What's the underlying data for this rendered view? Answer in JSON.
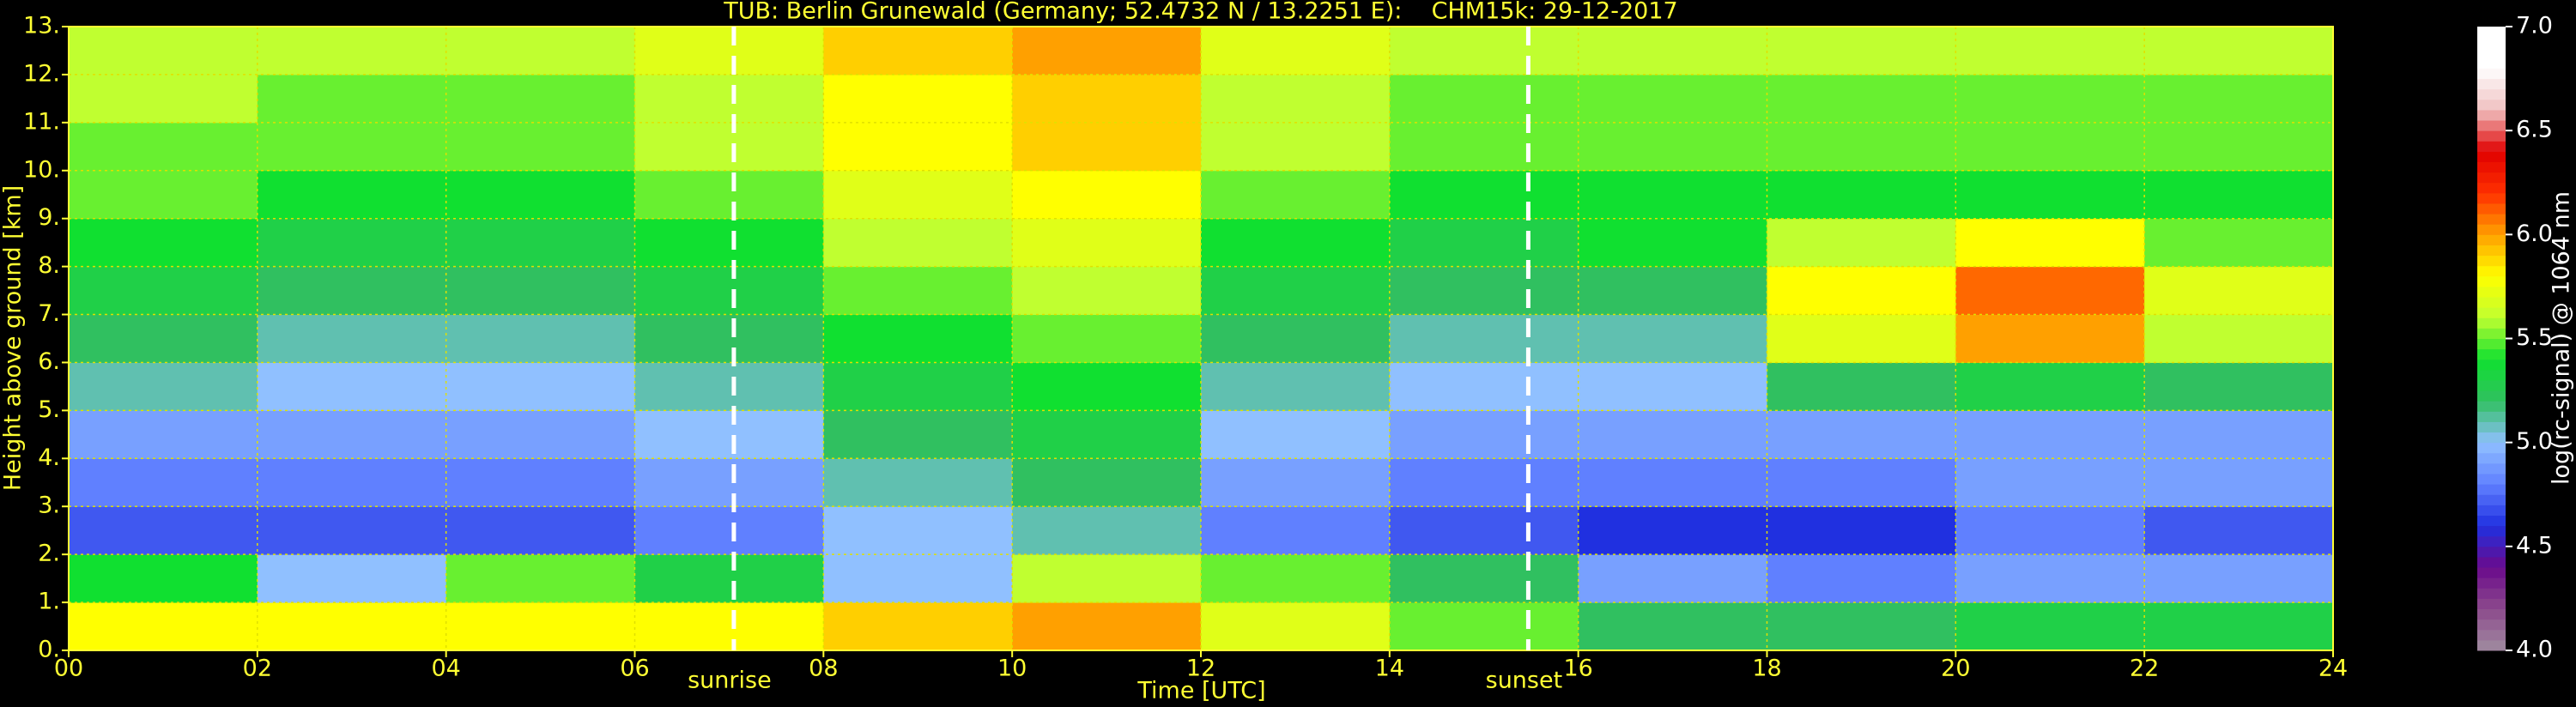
{
  "chart_data": {
    "type": "heatmap",
    "title": "TUB: Berlin Grunewald (Germany; 52.4732 N / 13.2251 E):    CHM15k: 29-12-2017",
    "x_label": "Time [UTC]",
    "y_label": "Height above ground [km]",
    "colorbar_label": "log(rc-signal) @ 1064 nm",
    "x_bins": [
      0,
      2,
      4,
      6,
      8,
      10,
      12,
      14,
      16,
      18,
      20,
      22,
      24
    ],
    "y_bins": [
      0,
      1,
      2,
      3,
      4,
      5,
      6,
      7,
      8,
      9,
      10,
      11,
      12,
      13
    ],
    "values": [
      [
        5.8,
        5.8,
        5.8,
        5.8,
        5.9,
        6.0,
        5.7,
        5.5,
        5.2,
        5.2,
        5.3,
        5.3
      ],
      [
        5.4,
        5.0,
        5.5,
        5.3,
        5.0,
        5.6,
        5.5,
        5.2,
        4.9,
        4.8,
        4.9,
        4.9
      ],
      [
        4.7,
        4.7,
        4.7,
        4.8,
        5.0,
        5.1,
        4.8,
        4.7,
        4.6,
        4.6,
        4.8,
        4.7
      ],
      [
        4.8,
        4.8,
        4.8,
        4.9,
        5.1,
        5.2,
        4.9,
        4.8,
        4.8,
        4.8,
        4.9,
        4.9
      ],
      [
        4.9,
        4.9,
        4.9,
        5.0,
        5.2,
        5.3,
        5.0,
        4.9,
        4.9,
        4.9,
        4.9,
        4.9
      ],
      [
        5.1,
        5.0,
        5.0,
        5.1,
        5.3,
        5.4,
        5.1,
        5.0,
        5.0,
        5.2,
        5.3,
        5.2
      ],
      [
        5.2,
        5.1,
        5.1,
        5.2,
        5.4,
        5.5,
        5.2,
        5.1,
        5.1,
        5.7,
        6.0,
        5.6
      ],
      [
        5.3,
        5.2,
        5.2,
        5.3,
        5.5,
        5.6,
        5.3,
        5.2,
        5.2,
        5.8,
        6.1,
        5.7
      ],
      [
        5.4,
        5.3,
        5.3,
        5.4,
        5.6,
        5.7,
        5.4,
        5.3,
        5.4,
        5.6,
        5.8,
        5.5
      ],
      [
        5.5,
        5.4,
        5.4,
        5.5,
        5.7,
        5.8,
        5.5,
        5.4,
        5.4,
        5.4,
        5.4,
        5.4
      ],
      [
        5.5,
        5.5,
        5.5,
        5.6,
        5.8,
        5.9,
        5.6,
        5.5,
        5.5,
        5.5,
        5.5,
        5.5
      ],
      [
        5.6,
        5.5,
        5.5,
        5.6,
        5.8,
        5.9,
        5.6,
        5.5,
        5.5,
        5.5,
        5.5,
        5.5
      ],
      [
        5.6,
        5.6,
        5.6,
        5.7,
        5.9,
        6.0,
        5.7,
        5.6,
        5.6,
        5.6,
        5.6,
        5.6
      ]
    ],
    "colormap": [
      "#a08ca0",
      "#8c4a8c",
      "#6a0a8c",
      "#2030e0",
      "#6080ff",
      "#90c0ff",
      "#30c060",
      "#10e030",
      "#c0ff30",
      "#ffff00",
      "#ffa000",
      "#ff3000",
      "#e00000",
      "#f0c0c0",
      "#ffffff",
      "#ffffff"
    ],
    "clim": [
      4,
      7
    ],
    "xlim": [
      0,
      24
    ],
    "ylim": [
      0,
      13
    ],
    "xticks": [
      {
        "value": 0,
        "label": "00"
      },
      {
        "value": 2,
        "label": "02"
      },
      {
        "value": 4,
        "label": "04"
      },
      {
        "value": 6,
        "label": "06"
      },
      {
        "value": 8,
        "label": "08"
      },
      10,
      12,
      14,
      16,
      18,
      20,
      22,
      24
    ],
    "yticks": [
      {
        "value": 0,
        "label": "0."
      },
      {
        "value": 1,
        "label": "1."
      },
      {
        "value": 2,
        "label": "2."
      },
      {
        "value": 3,
        "label": "3."
      },
      {
        "value": 4,
        "label": "4."
      },
      {
        "value": 5,
        "label": "5."
      },
      {
        "value": 6,
        "label": "6."
      },
      {
        "value": 7,
        "label": "7."
      },
      {
        "value": 8,
        "label": "8."
      },
      {
        "value": 9,
        "label": "9."
      },
      {
        "value": 10,
        "label": "10."
      },
      {
        "value": 11,
        "label": "11."
      },
      {
        "value": 12,
        "label": "12."
      },
      {
        "value": 13,
        "label": "13."
      }
    ],
    "cticks": [
      {
        "value": 4,
        "label": "4.0"
      },
      {
        "value": 4.5,
        "label": "4.5"
      },
      {
        "value": 5,
        "label": "5.0"
      },
      {
        "value": 5.5,
        "label": "5.5"
      },
      {
        "value": 6,
        "label": "6.0"
      },
      {
        "value": 6.5,
        "label": "6.5"
      },
      {
        "value": 7,
        "label": "7.0"
      }
    ],
    "annotations": [
      {
        "text": "sunrise",
        "x": 7.05
      },
      {
        "text": "sunset",
        "x": 15.47
      }
    ],
    "grid": true
  }
}
